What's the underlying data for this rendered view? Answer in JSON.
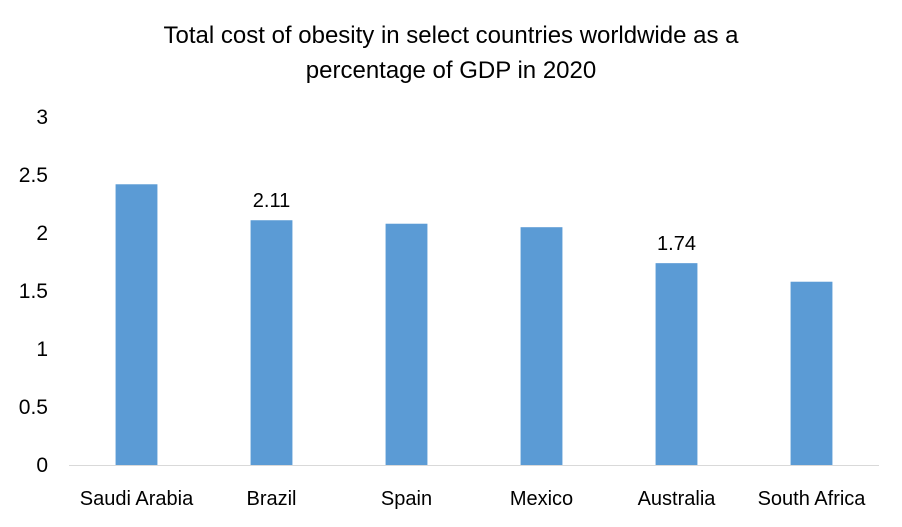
{
  "chart_data": {
    "type": "bar",
    "title_lines": [
      "Total cost of obesity in select countries worldwide as a",
      "percentage of GDP in 2020"
    ],
    "title": "Total cost of obesity in select countries worldwide as a percentage of GDP in 2020",
    "xlabel": "",
    "ylabel": "",
    "categories": [
      "Saudi Arabia",
      "Brazil",
      "Spain",
      "Mexico",
      "Australia",
      "South Africa"
    ],
    "values": [
      2.42,
      2.11,
      2.08,
      2.05,
      1.74,
      1.58
    ],
    "data_labels": [
      null,
      "2.11",
      null,
      null,
      "1.74",
      null
    ],
    "ylim": [
      0,
      3
    ],
    "yticks": [
      0,
      0.5,
      1,
      1.5,
      2,
      2.5,
      3
    ],
    "ytick_labels": [
      "0",
      "0.5",
      "1",
      "1.5",
      "2",
      "2.5",
      "3"
    ],
    "grid": false,
    "legend": "none",
    "bar_color": "#5B9BD5",
    "axis_color": "#D9D9D9"
  }
}
